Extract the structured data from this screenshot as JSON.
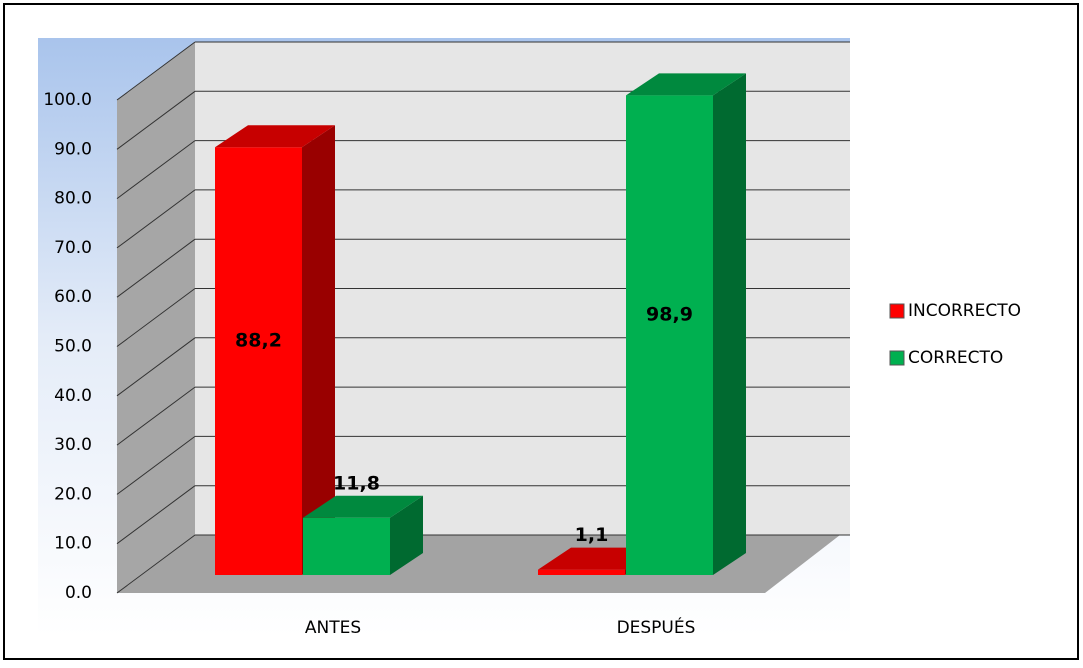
{
  "chart_data": {
    "type": "bar3d",
    "categories": [
      "ANTES",
      "DESPUÉS"
    ],
    "series": [
      {
        "name": "INCORRECTO",
        "color": "#ff0000",
        "values": [
          88.2,
          1.1
        ],
        "value_labels": [
          "88,2",
          "1,1"
        ]
      },
      {
        "name": "CORRECTO",
        "color": "#00b050",
        "values": [
          11.8,
          98.9
        ],
        "value_labels": [
          "11,8",
          "98,9"
        ]
      }
    ],
    "ylim": [
      0,
      100
    ],
    "yticks": [
      {
        "value": 0,
        "label": "0.0"
      },
      {
        "value": 10,
        "label": "10.0"
      },
      {
        "value": 20,
        "label": "20.0"
      },
      {
        "value": 30,
        "label": "30.0"
      },
      {
        "value": 40,
        "label": "40.0"
      },
      {
        "value": 50,
        "label": "50.0"
      },
      {
        "value": 60,
        "label": "60.0"
      },
      {
        "value": 70,
        "label": "70.0"
      },
      {
        "value": 80,
        "label": "80.0"
      },
      {
        "value": 90,
        "label": "90.0"
      },
      {
        "value": 100,
        "label": "100.0"
      }
    ],
    "grid": true,
    "legend": "right"
  }
}
